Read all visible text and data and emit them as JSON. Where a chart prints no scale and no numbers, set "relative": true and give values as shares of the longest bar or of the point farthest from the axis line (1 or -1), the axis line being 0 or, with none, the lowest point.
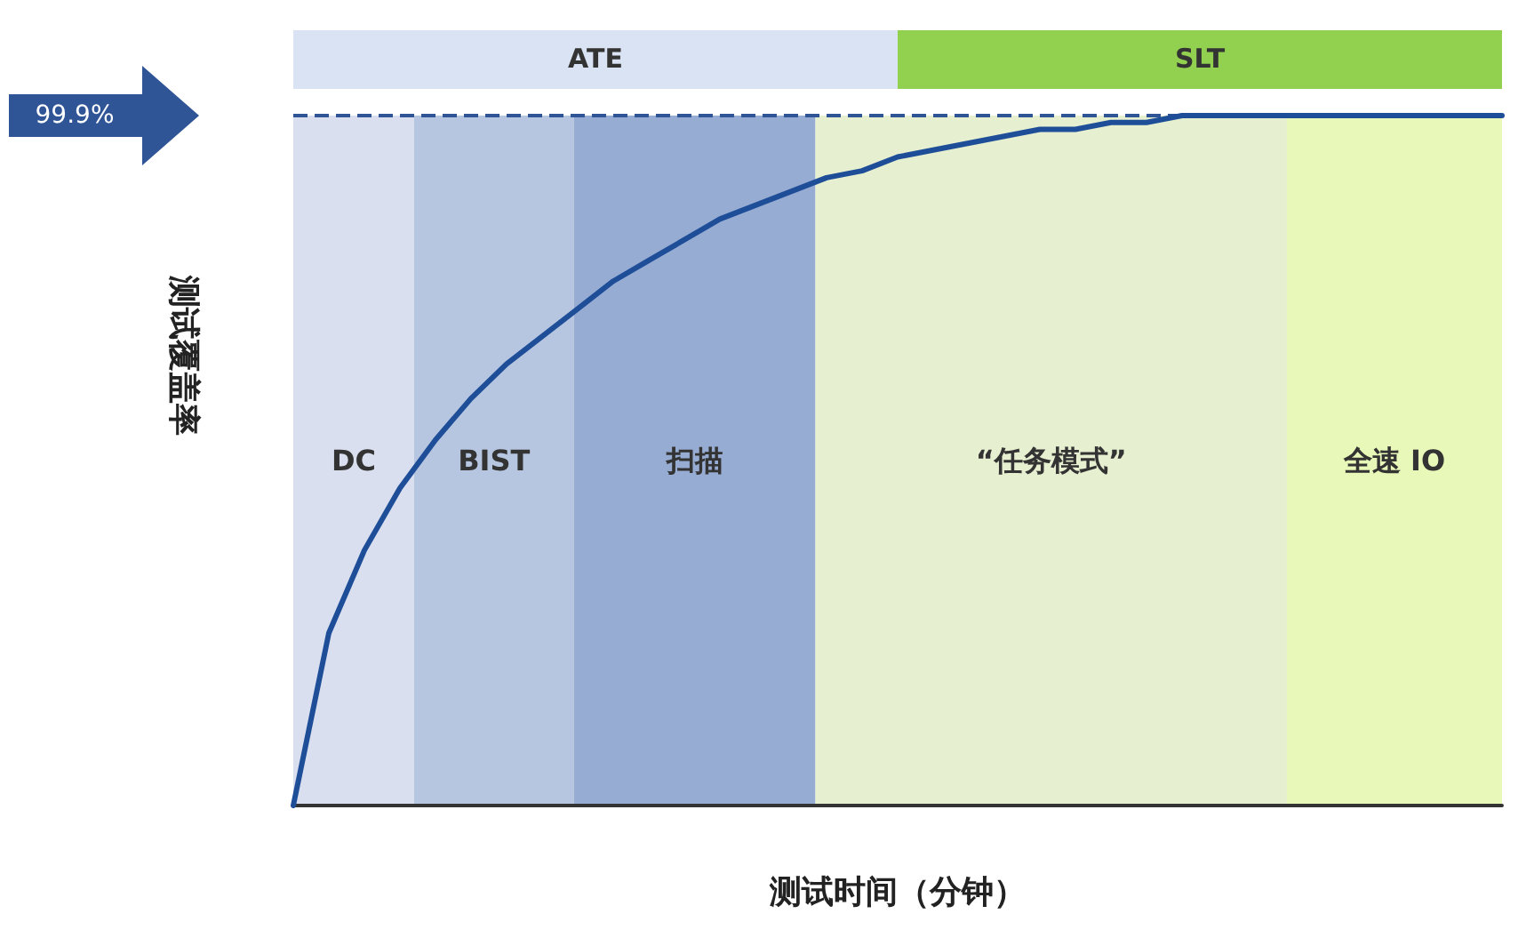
{
  "chart_data": {
    "type": "line",
    "relative": true,
    "xlabel": "测试时间（分钟）",
    "ylabel": "测试覆盖率",
    "categories": [
      null,
      null,
      null,
      null,
      null,
      null,
      null,
      null,
      null,
      null,
      null,
      null,
      null,
      null,
      null,
      null,
      null,
      null,
      null,
      null,
      null,
      null,
      null,
      null,
      null,
      null,
      null,
      null,
      null,
      null,
      null,
      null,
      null,
      null,
      null
    ],
    "series": [
      {
        "color": "#1f4e99",
        "values": [
          0,
          0.25,
          0.37,
          0.46,
          0.53,
          0.59,
          0.64,
          0.68,
          0.72,
          0.76,
          0.79,
          0.82,
          0.85,
          0.87,
          0.89,
          0.91,
          0.92,
          0.94,
          0.95,
          0.96,
          0.97,
          0.98,
          0.98,
          0.99,
          0.99,
          1,
          1,
          1,
          1,
          1,
          1,
          1,
          1,
          1,
          1
        ]
      }
    ],
    "marker": "none",
    "line_style": "solid",
    "ref_lines": [
      {
        "axis": "y",
        "value": 1,
        "color": "#2f5597",
        "line_style": "dashed"
      }
    ],
    "annotations": [
      "99.9%",
      "DC",
      "BIST",
      "扫描",
      "“任务模式”",
      "全速 IO",
      "ATE",
      "SLT"
    ]
  }
}
